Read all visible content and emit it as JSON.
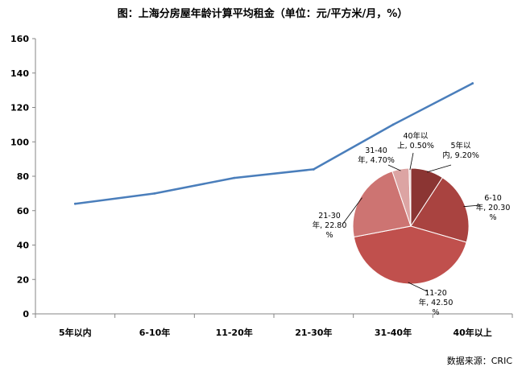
{
  "chart_data": [
    {
      "type": "line",
      "title": "图：上海分房屋年龄计算平均租金（单位：元/平方米/月，%）",
      "categories": [
        "5年以内",
        "6-10年",
        "11-20年",
        "21-30年",
        "31-40年",
        "40年以上"
      ],
      "series": [
        {
          "values": [
            64,
            70,
            79,
            84,
            110,
            134
          ]
        }
      ],
      "ylim": [
        0,
        160
      ],
      "yticks": [
        0,
        20,
        40,
        60,
        80,
        100,
        120,
        140,
        160
      ],
      "grid": false,
      "line_color": "#4a7ebb"
    },
    {
      "type": "pie",
      "slices": [
        {
          "label_lines": [
            "5年以",
            "内, 9.20%"
          ],
          "value": 9.2,
          "color": "#8b3533"
        },
        {
          "label_lines": [
            "6-10",
            "年, 20.30",
            "%"
          ],
          "value": 20.3,
          "color": "#a94340"
        },
        {
          "label_lines": [
            "11-20",
            "年, 42.50",
            "%"
          ],
          "value": 42.5,
          "color": "#c0504d"
        },
        {
          "label_lines": [
            "21-30",
            "年, 22.80",
            "%"
          ],
          "value": 22.8,
          "color": "#cd7472"
        },
        {
          "label_lines": [
            "31-40",
            "年, 4.70%"
          ],
          "value": 4.7,
          "color": "#dca4a3"
        },
        {
          "label_lines": [
            "40年以",
            "上, 0.50%"
          ],
          "value": 0.5,
          "color": "#e8c9c8"
        }
      ]
    }
  ],
  "source": "数据来源：CRIC"
}
